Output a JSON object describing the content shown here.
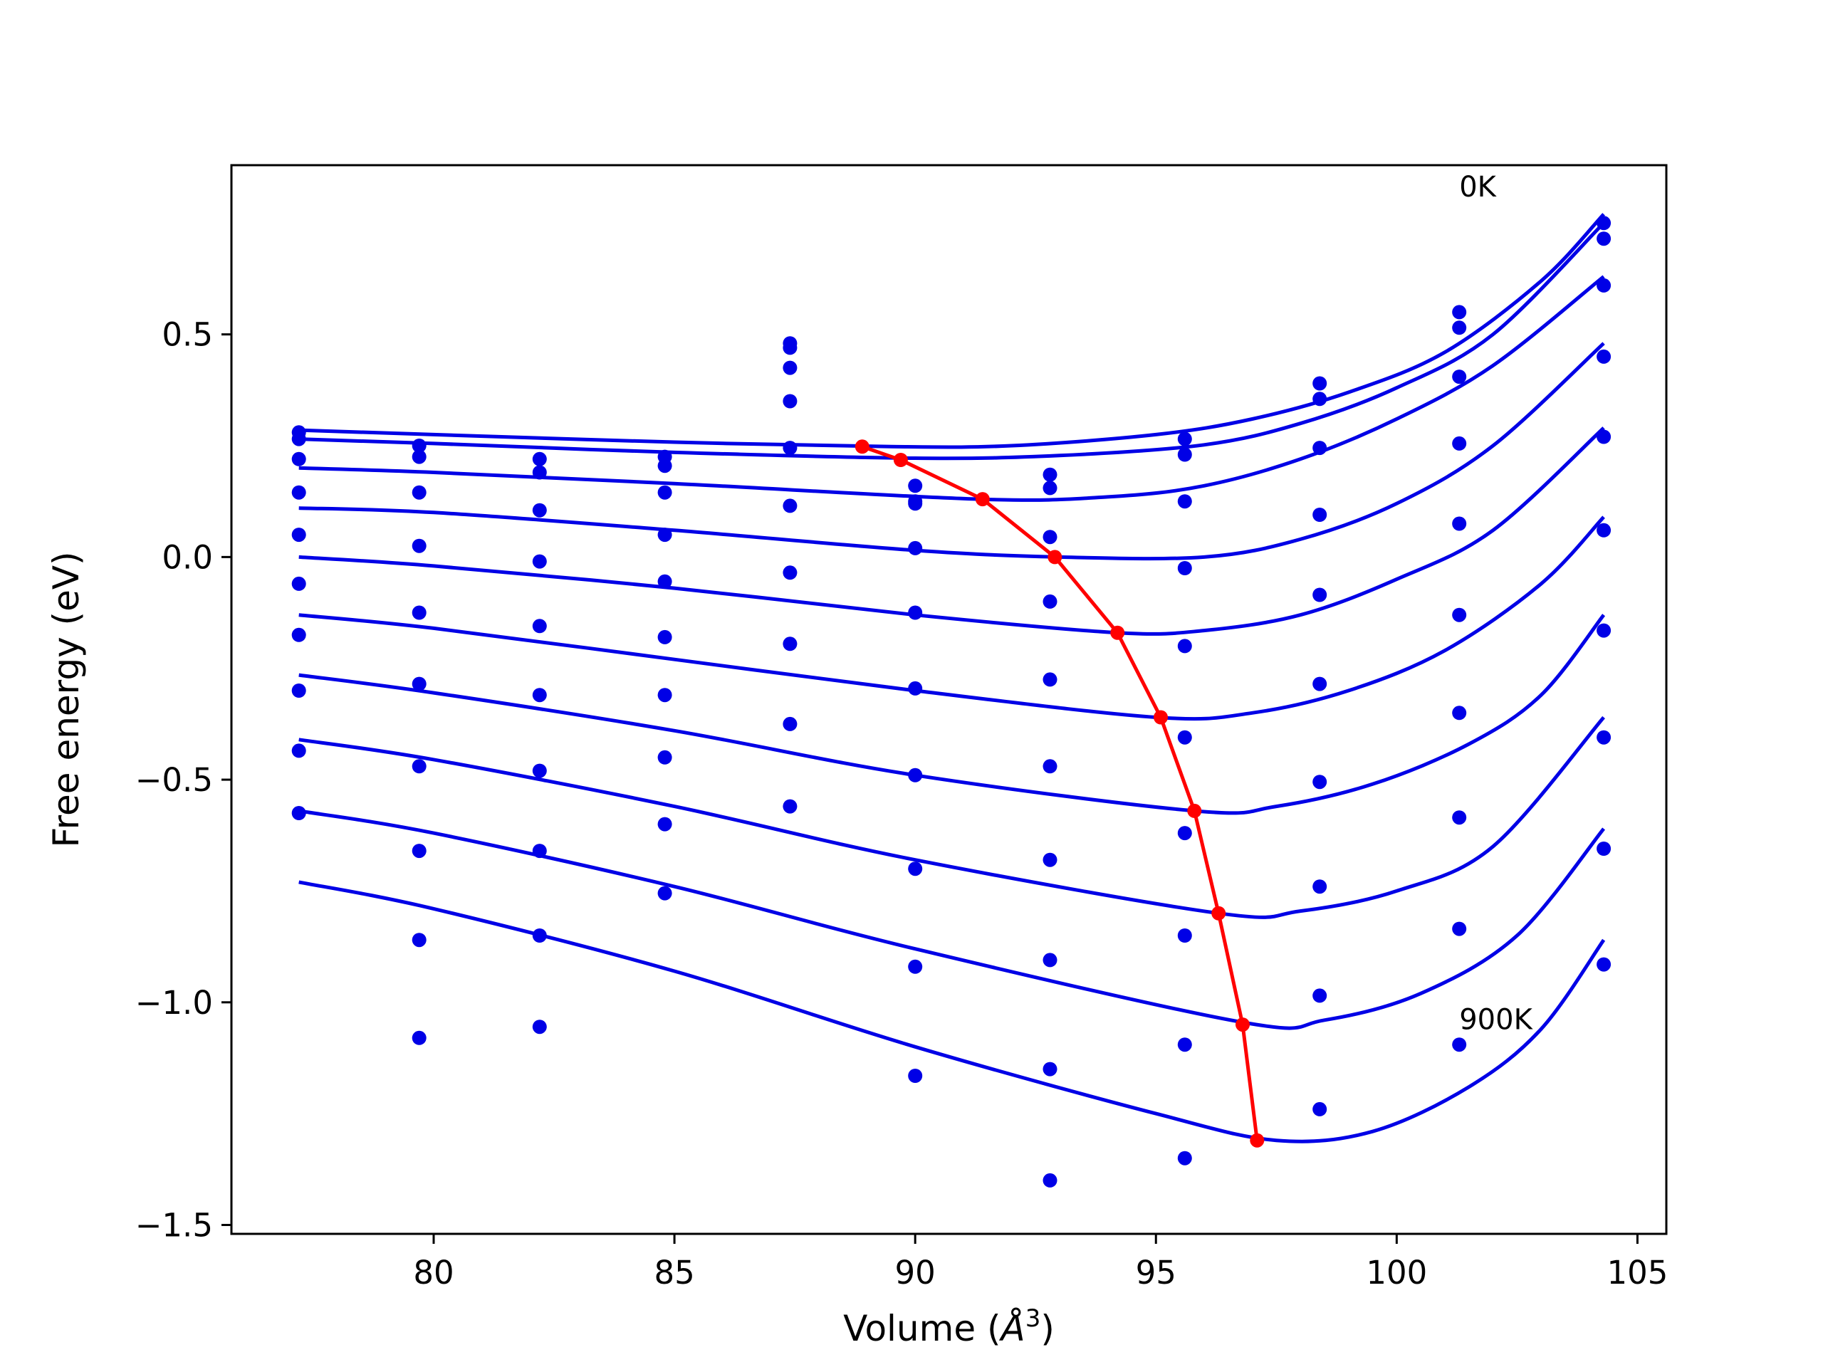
{
  "chart_data": {
    "type": "line",
    "title": "",
    "xlabel": "Volume (",
    "xlabel_symbol": "Å",
    "xlabel_exp": "3",
    "xlabel_close": ")",
    "ylabel": "Free energy (eV)",
    "xlim": [
      75.8,
      105.6
    ],
    "ylim": [
      -1.52,
      0.88
    ],
    "xticks": [
      80,
      85,
      90,
      95,
      100,
      105
    ],
    "xtick_labels": [
      "80",
      "85",
      "90",
      "95",
      "100",
      "105"
    ],
    "yticks": [
      0.5,
      0.0,
      -0.5,
      -1.0,
      -1.5
    ],
    "ytick_labels": [
      "0.5",
      "0.0",
      "−0.5",
      "−1.0",
      "−1.5"
    ],
    "grid": false,
    "annotations": [
      {
        "text": "0K",
        "x": 101.3,
        "y": 0.81
      },
      {
        "text": "900K",
        "x": 101.3,
        "y": -1.06
      }
    ],
    "volumes": [
      77.2,
      79.7,
      82.2,
      84.8,
      87.4,
      90.0,
      92.8,
      95.6,
      98.4,
      101.3,
      104.3
    ],
    "colors": {
      "fit_curves": "#0000e6",
      "data_points": "#0000e6",
      "minimum_path": "#ff0000"
    },
    "series": [
      {
        "curve": [
          [
            77.2,
            0.285
          ],
          [
            80,
            0.275
          ],
          [
            85,
            0.258
          ],
          [
            89.5,
            0.248
          ],
          [
            92,
            0.25
          ],
          [
            95,
            0.275
          ],
          [
            97,
            0.31
          ],
          [
            99,
            0.37
          ],
          [
            101,
            0.46
          ],
          [
            103,
            0.62
          ],
          [
            104.3,
            0.77
          ]
        ],
        "points": [
          0.28,
          0.25,
          0.22,
          0.225,
          0.48,
          0.16,
          0.185,
          0.265,
          0.39,
          0.55,
          0.75
        ]
      },
      {
        "curve": [
          [
            77.2,
            0.265
          ],
          [
            80,
            0.255
          ],
          [
            85,
            0.235
          ],
          [
            90,
            0.222
          ],
          [
            93,
            0.228
          ],
          [
            96,
            0.252
          ],
          [
            98,
            0.3
          ],
          [
            100,
            0.38
          ],
          [
            102,
            0.5
          ],
          [
            104.3,
            0.75
          ]
        ],
        "points": [
          0.265,
          0.225,
          0.19,
          0.205,
          0.47,
          0.125,
          0.155,
          0.23,
          0.355,
          0.515,
          0.715
        ]
      },
      {
        "curve": [
          [
            77.2,
            0.2
          ],
          [
            80,
            0.19
          ],
          [
            85,
            0.165
          ],
          [
            91.3,
            0.13
          ],
          [
            94,
            0.135
          ],
          [
            96,
            0.16
          ],
          [
            98,
            0.22
          ],
          [
            100,
            0.31
          ],
          [
            102,
            0.43
          ],
          [
            104.3,
            0.63
          ]
        ],
        "points": [
          0.22,
          0.145,
          0.105,
          0.145,
          0.425,
          0.12,
          0.045,
          0.125,
          0.245,
          0.405,
          0.61
        ]
      },
      {
        "curve": [
          [
            77.2,
            0.11
          ],
          [
            80,
            0.1
          ],
          [
            85,
            0.06
          ],
          [
            90,
            0.015
          ],
          [
            93,
            0.0
          ],
          [
            96,
            0.0
          ],
          [
            98,
            0.04
          ],
          [
            100,
            0.12
          ],
          [
            102,
            0.25
          ],
          [
            104.3,
            0.48
          ]
        ],
        "points": [
          0.145,
          0.025,
          -0.01,
          0.05,
          0.35,
          0.02,
          -0.1,
          -0.025,
          0.095,
          0.255,
          0.45
        ]
      },
      {
        "curve": [
          [
            77.2,
            0.0
          ],
          [
            80,
            -0.02
          ],
          [
            85,
            -0.07
          ],
          [
            90,
            -0.13
          ],
          [
            94.2,
            -0.17
          ],
          [
            96,
            -0.165
          ],
          [
            98,
            -0.13
          ],
          [
            100,
            -0.05
          ],
          [
            102,
            0.06
          ],
          [
            104.3,
            0.29
          ]
        ],
        "points": [
          0.05,
          -0.125,
          -0.155,
          -0.055,
          0.245,
          -0.125,
          -0.275,
          -0.2,
          -0.085,
          0.075,
          0.27
        ]
      },
      {
        "curve": [
          [
            77.2,
            -0.13
          ],
          [
            80,
            -0.16
          ],
          [
            85,
            -0.23
          ],
          [
            90,
            -0.3
          ],
          [
            95,
            -0.36
          ],
          [
            97,
            -0.35
          ],
          [
            99,
            -0.3
          ],
          [
            101,
            -0.21
          ],
          [
            103,
            -0.06
          ],
          [
            104.3,
            0.09
          ]
        ],
        "points": [
          -0.06,
          -0.285,
          -0.31,
          -0.18,
          0.115,
          -0.295,
          -0.47,
          -0.405,
          -0.285,
          -0.13,
          0.06
        ]
      },
      {
        "curve": [
          [
            77.2,
            -0.265
          ],
          [
            80,
            -0.305
          ],
          [
            85,
            -0.39
          ],
          [
            90,
            -0.49
          ],
          [
            95.8,
            -0.57
          ],
          [
            97.5,
            -0.56
          ],
          [
            99.5,
            -0.51
          ],
          [
            101.5,
            -0.42
          ],
          [
            103,
            -0.31
          ],
          [
            104.3,
            -0.13
          ]
        ],
        "points": [
          -0.175,
          -0.47,
          -0.48,
          -0.31,
          -0.035,
          -0.49,
          -0.68,
          -0.62,
          -0.505,
          -0.35,
          -0.165
        ]
      },
      {
        "curve": [
          [
            77.2,
            -0.41
          ],
          [
            80,
            -0.455
          ],
          [
            85,
            -0.56
          ],
          [
            90,
            -0.68
          ],
          [
            96.3,
            -0.8
          ],
          [
            98,
            -0.795
          ],
          [
            100,
            -0.75
          ],
          [
            102,
            -0.65
          ],
          [
            104.3,
            -0.36
          ]
        ],
        "points": [
          -0.3,
          -0.66,
          -0.66,
          -0.45,
          -0.195,
          -0.7,
          -0.905,
          -0.85,
          -0.74,
          -0.585,
          -0.405
        ]
      },
      {
        "curve": [
          [
            77.2,
            -0.57
          ],
          [
            80,
            -0.62
          ],
          [
            85,
            -0.74
          ],
          [
            90,
            -0.88
          ],
          [
            96.8,
            -1.045
          ],
          [
            98.5,
            -1.04
          ],
          [
            100.5,
            -0.98
          ],
          [
            102.5,
            -0.85
          ],
          [
            104.3,
            -0.61
          ]
        ],
        "points": [
          -0.435,
          -0.86,
          -0.85,
          -0.6,
          -0.375,
          -0.92,
          -1.15,
          -1.095,
          -0.985,
          -0.835,
          -0.655
        ]
      },
      {
        "curve": [
          [
            77.2,
            -0.73
          ],
          [
            80,
            -0.79
          ],
          [
            85,
            -0.93
          ],
          [
            90,
            -1.1
          ],
          [
            95,
            -1.25
          ],
          [
            97.5,
            -1.31
          ],
          [
            99.5,
            -1.29
          ],
          [
            101.5,
            -1.19
          ],
          [
            103,
            -1.06
          ],
          [
            104.3,
            -0.86
          ]
        ],
        "points": [
          -0.575,
          -1.08,
          -1.055,
          -0.755,
          -0.56,
          -1.165,
          -1.4,
          -1.35,
          -1.24,
          -1.095,
          -0.915
        ]
      }
    ],
    "minimum_path": {
      "x": [
        88.9,
        89.7,
        91.4,
        92.9,
        94.2,
        95.1,
        95.8,
        96.3,
        96.8,
        97.1
      ],
      "y": [
        0.248,
        0.218,
        0.13,
        0.0,
        -0.17,
        -0.36,
        -0.57,
        -0.8,
        -1.05,
        -1.31
      ]
    }
  }
}
